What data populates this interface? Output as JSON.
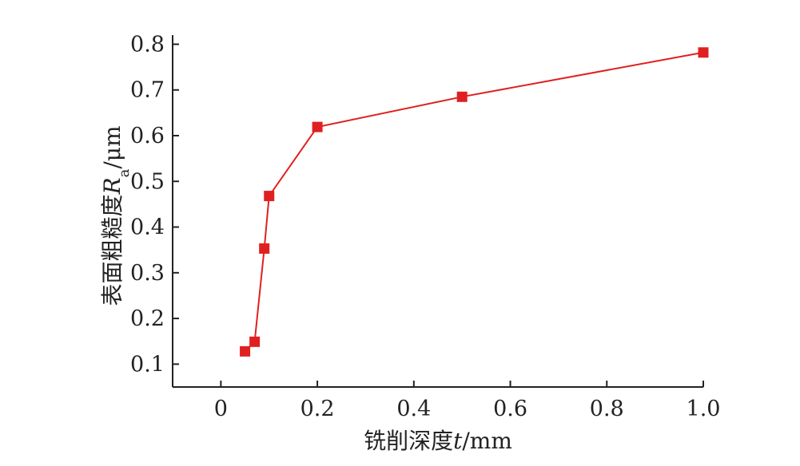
{
  "chart_data": {
    "type": "line",
    "x_label": {
      "parts": [
        {
          "text": "铣削深度",
          "style": "normal"
        },
        {
          "text": "t",
          "style": "italic"
        },
        {
          "text": "/mm",
          "style": "normal"
        }
      ]
    },
    "y_label": {
      "parts": [
        {
          "text": "表面粗糙度",
          "style": "normal"
        },
        {
          "text": "R",
          "style": "italic"
        },
        {
          "text": "a",
          "style": "subscript"
        },
        {
          "text": "/μm",
          "style": "normal"
        }
      ]
    },
    "xlim": [
      -0.1,
      1.0
    ],
    "ylim": [
      0.05,
      0.82
    ],
    "x_ticks": [
      {
        "value": 0,
        "label": "0"
      },
      {
        "value": 0.2,
        "label": "0.2"
      },
      {
        "value": 0.4,
        "label": "0.4"
      },
      {
        "value": 0.6,
        "label": "0.6"
      },
      {
        "value": 0.8,
        "label": "0.8"
      },
      {
        "value": 1.0,
        "label": "1.0"
      }
    ],
    "y_ticks": [
      {
        "value": 0.1,
        "label": "0.1"
      },
      {
        "value": 0.2,
        "label": "0.2"
      },
      {
        "value": 0.3,
        "label": "0.3"
      },
      {
        "value": 0.4,
        "label": "0.4"
      },
      {
        "value": 0.5,
        "label": "0.5"
      },
      {
        "value": 0.6,
        "label": "0.6"
      },
      {
        "value": 0.7,
        "label": "0.7"
      },
      {
        "value": 0.8,
        "label": "0.8"
      }
    ],
    "grid": false,
    "series": [
      {
        "x": [
          0.05,
          0.07,
          0.09,
          0.1,
          0.2,
          0.5,
          1.0
        ],
        "y": [
          0.128,
          0.149,
          0.353,
          0.468,
          0.619,
          0.685,
          0.782
        ],
        "color": "#e02020",
        "marker": "square"
      }
    ]
  }
}
